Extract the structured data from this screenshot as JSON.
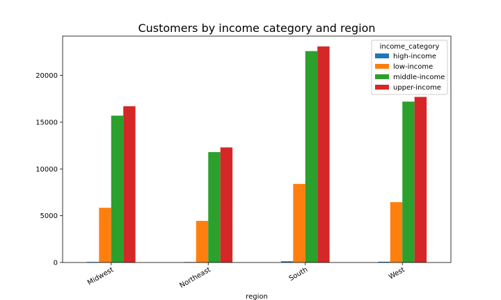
{
  "chart_data": {
    "type": "bar",
    "title": "Customers by income category and region",
    "xlabel": "region",
    "ylabel": "",
    "categories": [
      "Midwest",
      "Northeast",
      "South",
      "West"
    ],
    "series": [
      {
        "name": "high-income",
        "color": "#1f77b4",
        "values": [
          60,
          50,
          130,
          80
        ]
      },
      {
        "name": "low-income",
        "color": "#ff7f0e",
        "values": [
          5850,
          4450,
          8400,
          6450
        ]
      },
      {
        "name": "middle-income",
        "color": "#2ca02c",
        "values": [
          15700,
          11800,
          22600,
          17200
        ]
      },
      {
        "name": "upper-income",
        "color": "#d62728",
        "values": [
          16700,
          12300,
          23100,
          17700
        ]
      }
    ],
    "ylim": [
      0,
      24200
    ],
    "yticks": [
      0,
      5000,
      10000,
      15000,
      20000
    ],
    "legend": {
      "title": "income_category",
      "placement": "top-right"
    },
    "grid": false
  }
}
